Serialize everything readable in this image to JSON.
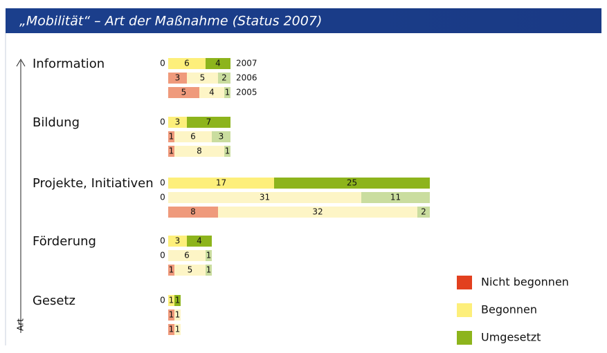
{
  "chart_data": {
    "type": "grouped-stacked-bar",
    "title": "„Mobilität“ – Art der Maßnahme (Status 2007)",
    "y_label": "Art",
    "categories": [
      "Information",
      "Bildung",
      "Projekte, Initiativen",
      "Förderung",
      "Gesetz"
    ],
    "years": [
      "2007",
      "2006",
      "2005"
    ],
    "xlim": [
      0,
      42
    ],
    "series": [
      {
        "name": "Nicht begonnen",
        "color": "#e2401f",
        "year_colors": [
          "#e2401f",
          "#ef9a7c",
          "#ef9a7c"
        ],
        "values": [
          [
            0,
            3,
            5
          ],
          [
            0,
            1,
            1
          ],
          [
            0,
            0,
            8
          ],
          [
            0,
            0,
            1
          ],
          [
            0,
            1,
            1
          ]
        ]
      },
      {
        "name": "Begonnen",
        "color": "#fdef7b",
        "year_colors": [
          "#fdef7b",
          "#fdf5c6",
          "#fdf5c6"
        ],
        "values": [
          [
            6,
            5,
            4
          ],
          [
            3,
            6,
            8
          ],
          [
            17,
            31,
            32
          ],
          [
            3,
            6,
            5
          ],
          [
            1,
            1,
            1
          ]
        ]
      },
      {
        "name": "Umgesetzt",
        "color": "#8db41c",
        "year_colors": [
          "#8db41c",
          "#cadd9f",
          "#cadd9f"
        ],
        "values": [
          [
            4,
            2,
            1
          ],
          [
            7,
            3,
            1
          ],
          [
            25,
            11,
            2
          ],
          [
            4,
            1,
            1
          ],
          [
            1,
            null,
            null
          ]
        ]
      }
    ],
    "legend": "bottom-right"
  }
}
